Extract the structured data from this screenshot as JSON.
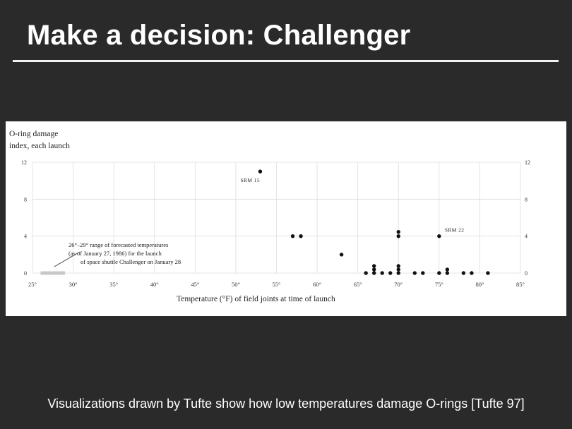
{
  "slide": {
    "title": "Make a decision: Challenger",
    "caption": "Visualizations drawn by Tufte show how low temperatures damage O-rings [Tufte 97]"
  },
  "chart_data": {
    "type": "scatter",
    "ylabel_line1": "O-ring damage",
    "ylabel_line2": "index, each launch",
    "xlabel": "Temperature (°F) of field joints at time of launch",
    "xlim": [
      25,
      85
    ],
    "ylim": [
      0,
      12
    ],
    "x_ticks": [
      25,
      30,
      35,
      40,
      45,
      50,
      55,
      60,
      65,
      70,
      75,
      80,
      85
    ],
    "x_tick_labels": [
      "25°",
      "30°",
      "35°",
      "40°",
      "45°",
      "50°",
      "55°",
      "60°",
      "65°",
      "70°",
      "75°",
      "80°",
      "85°"
    ],
    "y_ticks": [
      0,
      4,
      8,
      12
    ],
    "y_tick_labels": [
      "0",
      "4",
      "8",
      "12"
    ],
    "grid": true,
    "colors": {
      "points": "#111111",
      "grid": "#dddddd",
      "forecast_band": "#c8c8c8"
    },
    "points": [
      {
        "x": 53,
        "y": 11
      },
      {
        "x": 57,
        "y": 4
      },
      {
        "x": 58,
        "y": 4
      },
      {
        "x": 63,
        "y": 2
      },
      {
        "x": 70,
        "y": 4
      },
      {
        "x": 70,
        "y": 4
      },
      {
        "x": 75,
        "y": 4
      },
      {
        "x": 66,
        "y": 0
      },
      {
        "x": 67,
        "y": 0
      },
      {
        "x": 67,
        "y": 0
      },
      {
        "x": 67,
        "y": 0
      },
      {
        "x": 68,
        "y": 0
      },
      {
        "x": 69,
        "y": 0
      },
      {
        "x": 70,
        "y": 0
      },
      {
        "x": 70,
        "y": 0
      },
      {
        "x": 70,
        "y": 0
      },
      {
        "x": 72,
        "y": 0
      },
      {
        "x": 73,
        "y": 0
      },
      {
        "x": 75,
        "y": 0
      },
      {
        "x": 76,
        "y": 0
      },
      {
        "x": 76,
        "y": 0
      },
      {
        "x": 78,
        "y": 0
      },
      {
        "x": 79,
        "y": 0
      },
      {
        "x": 81,
        "y": 0
      }
    ],
    "point_labels": [
      {
        "text": "SRM 15",
        "x": 53,
        "y": 11
      },
      {
        "text": "SRM 22",
        "x": 75,
        "y": 4
      }
    ],
    "forecast_range": {
      "x_start": 26,
      "x_end": 29
    },
    "annotation_lines": [
      "26°–29° range of forecasted temperatures",
      "(as of January 27, 1986) for the launch",
      "of space shuttle Challenger on January 28"
    ]
  }
}
